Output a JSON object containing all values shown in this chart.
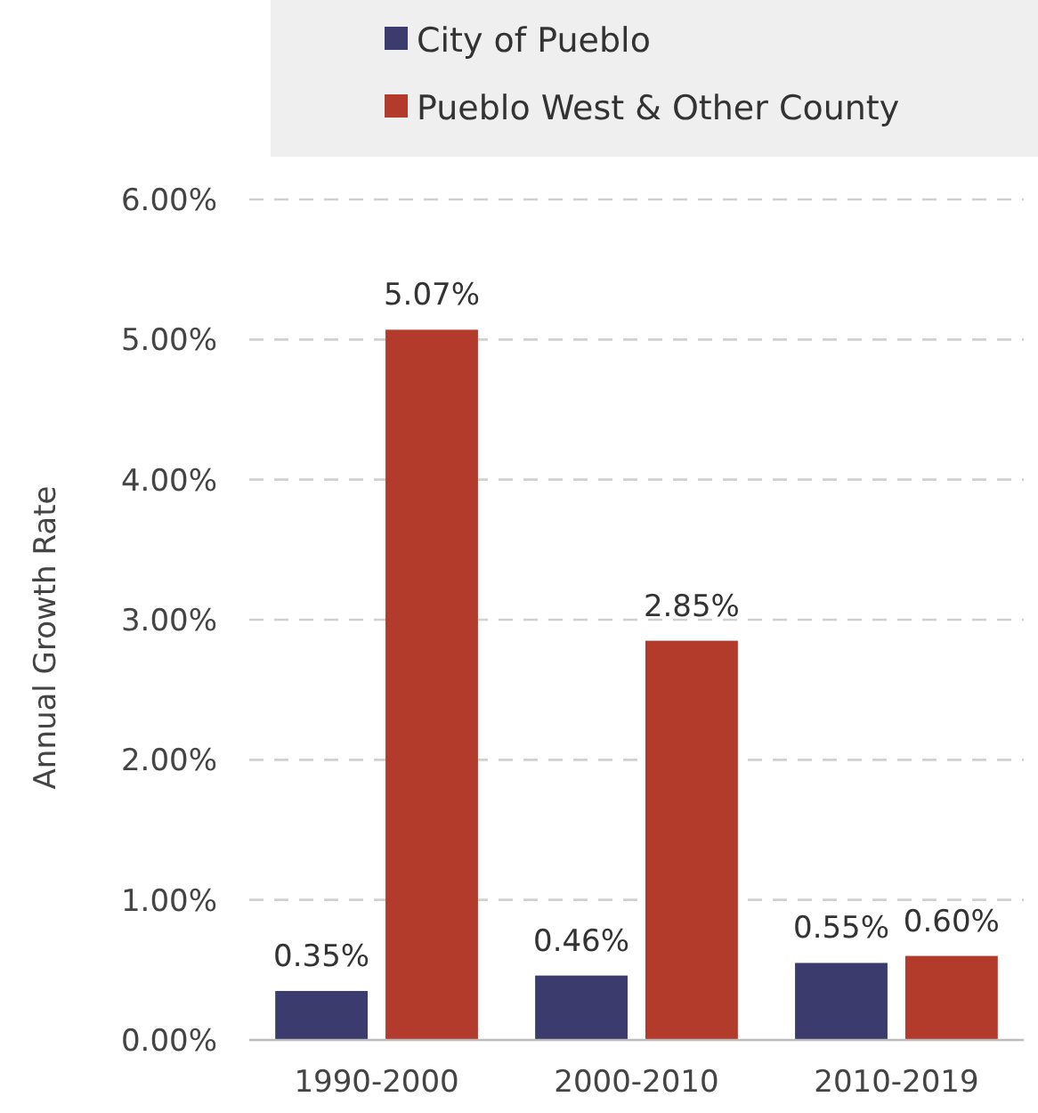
{
  "chart_data": {
    "type": "bar",
    "ylabel": "Annual Growth Rate",
    "categories": [
      "1990-2000",
      "2000-2010",
      "2010-2019"
    ],
    "series": [
      {
        "name": "City of Pueblo",
        "color": "#3b3b6d",
        "values": [
          0.35,
          0.46,
          0.55
        ],
        "value_labels": [
          "0.35%",
          "0.46%",
          "0.55%"
        ]
      },
      {
        "name": "Pueblo West & Other County",
        "color": "#b33b2b",
        "values": [
          5.07,
          2.85,
          0.6
        ],
        "value_labels": [
          "5.07%",
          "2.85%",
          "0.60%"
        ]
      }
    ],
    "ylim": [
      0,
      6
    ],
    "yticks": [
      {
        "value": 0,
        "label": "0.00%"
      },
      {
        "value": 1,
        "label": "1.00%"
      },
      {
        "value": 2,
        "label": "2.00%"
      },
      {
        "value": 3,
        "label": "3.00%"
      },
      {
        "value": 4,
        "label": "4.00%"
      },
      {
        "value": 5,
        "label": "5.00%"
      },
      {
        "value": 6,
        "label": "6.00%"
      }
    ],
    "grid": "y",
    "legend": "top"
  }
}
